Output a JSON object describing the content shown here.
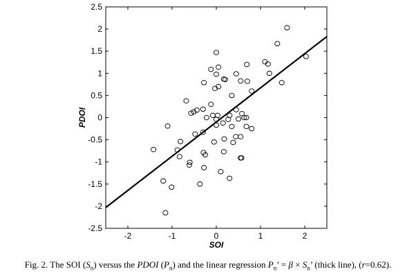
{
  "chart_data": {
    "type": "scatter",
    "xlabel": "SOI",
    "ylabel": "PDOI",
    "xlim": [
      -2.5,
      2.5
    ],
    "ylim": [
      -2.5,
      2.5
    ],
    "x_ticks": [
      -2,
      -1,
      0,
      1,
      2
    ],
    "y_ticks": [
      -2.5,
      -2,
      -1.5,
      -1,
      -0.5,
      0,
      0.5,
      1,
      1.5,
      2,
      2.5
    ],
    "grid": false,
    "series": [
      {
        "marker": "open-circle",
        "color": "#000000",
        "points": [
          [
            1.6,
            2.03
          ],
          [
            2.03,
            1.38
          ],
          [
            1.38,
            1.67
          ],
          [
            0.0,
            1.47
          ],
          [
            1.1,
            1.26
          ],
          [
            1.17,
            1.21
          ],
          [
            0.69,
            1.2
          ],
          [
            0.05,
            1.14
          ],
          [
            -0.12,
            1.09
          ],
          [
            1.2,
            1.0
          ],
          [
            0.45,
            0.99
          ],
          [
            0.0,
            0.98
          ],
          [
            0.17,
            0.87
          ],
          [
            0.2,
            0.86
          ],
          [
            0.55,
            0.83
          ],
          [
            0.7,
            0.82
          ],
          [
            -0.28,
            0.79
          ],
          [
            1.48,
            0.79
          ],
          [
            0.05,
            0.7
          ],
          [
            -0.03,
            0.66
          ],
          [
            0.35,
            0.5
          ],
          [
            -0.12,
            0.3
          ],
          [
            -0.68,
            0.38
          ],
          [
            0.8,
            0.6
          ],
          [
            -0.44,
            0.17
          ],
          [
            -0.51,
            0.13
          ],
          [
            -0.57,
            0.1
          ],
          [
            -0.3,
            0.19
          ],
          [
            0.45,
            0.18
          ],
          [
            0.58,
            0.09
          ],
          [
            0.3,
            0.05
          ],
          [
            0.68,
            0.0
          ],
          [
            0.03,
            0.05
          ],
          [
            -0.08,
            0.05
          ],
          [
            0.0,
            -0.04
          ],
          [
            -0.22,
            0.0
          ],
          [
            0.27,
            -0.04
          ],
          [
            0.5,
            -0.03
          ],
          [
            0.63,
            0.0
          ],
          [
            0.68,
            -0.2
          ],
          [
            0.8,
            -0.25
          ],
          [
            0.15,
            -0.12
          ],
          [
            0.0,
            -0.17
          ],
          [
            0.35,
            -0.2
          ],
          [
            -0.3,
            -0.33
          ],
          [
            -0.48,
            -0.37
          ],
          [
            -0.81,
            -0.54
          ],
          [
            0.44,
            -0.43
          ],
          [
            0.55,
            -0.43
          ],
          [
            0.18,
            -0.48
          ],
          [
            0.38,
            -0.56
          ],
          [
            -0.05,
            -0.55
          ],
          [
            -0.88,
            -0.73
          ],
          [
            -1.42,
            -0.72
          ],
          [
            -1.1,
            -0.19
          ],
          [
            -0.29,
            -0.79
          ],
          [
            -0.25,
            -0.84
          ],
          [
            -0.83,
            -0.88
          ],
          [
            0.17,
            -0.77
          ],
          [
            -0.6,
            -1.01
          ],
          [
            0.55,
            -0.91
          ],
          [
            0.57,
            -0.91
          ],
          [
            -0.61,
            -1.07
          ],
          [
            -0.28,
            -1.13
          ],
          [
            0.1,
            -1.22
          ],
          [
            -1.2,
            -1.43
          ],
          [
            -1.01,
            -1.57
          ],
          [
            -0.37,
            -1.5
          ],
          [
            0.3,
            -1.37
          ],
          [
            -1.15,
            -2.15
          ]
        ]
      },
      {
        "type": "line",
        "style": "thick",
        "color": "#000000",
        "x": [
          -2.5,
          2.5
        ],
        "y": [
          -2.03,
          1.83
        ]
      }
    ]
  },
  "caption": {
    "fig_label": "Fig. 2. The SOI (",
    "s_var": "S",
    "s_sub": "n",
    "mid1": ") versus the ",
    "pdoi": "PDOI",
    "mid2": " (",
    "p_var": "P",
    "p_sub": "n",
    "mid3": ") and the linear regression ",
    "eq_p": "P",
    "eq_p_sub": "n",
    "eq_mid": "’ = ",
    "beta": "β",
    "times": " × ",
    "eq_s": "S",
    "eq_s_sub": "n",
    "eq_end": "’ (thick line), (",
    "r_var": "r",
    "r_val": "=0.62)."
  }
}
